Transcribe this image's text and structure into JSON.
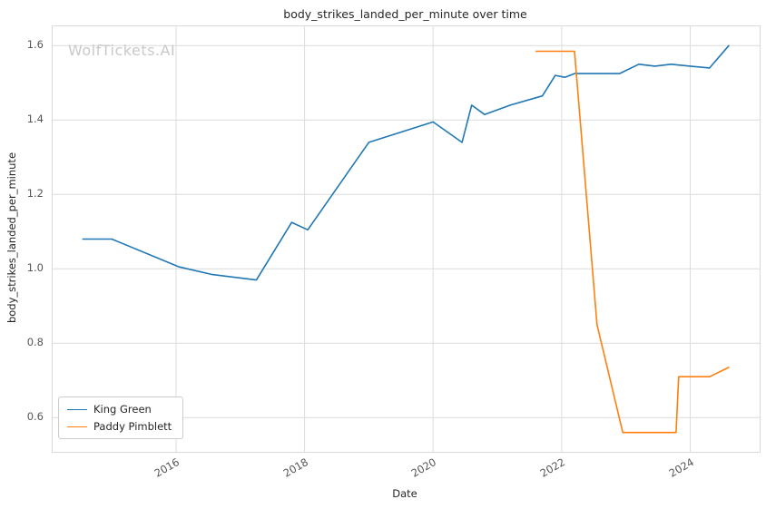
{
  "watermark": "WolfTickets.AI",
  "chart_data": {
    "type": "line",
    "title": "body_strikes_landed_per_minute over time",
    "xlabel": "Date",
    "ylabel": "body_strikes_landed_per_minute",
    "xlim": [
      2014.08,
      2025.08
    ],
    "ylim": [
      0.508,
      1.652
    ],
    "xticks": [
      2016,
      2018,
      2020,
      2022,
      2024
    ],
    "yticks": [
      0.6,
      0.8,
      1.0,
      1.2,
      1.4,
      1.6
    ],
    "grid": true,
    "legend_position": "lower left",
    "series": [
      {
        "name": "King Green",
        "color": "#1f77b4",
        "points": [
          [
            2014.55,
            1.08
          ],
          [
            2015.0,
            1.08
          ],
          [
            2016.05,
            1.005
          ],
          [
            2016.55,
            0.985
          ],
          [
            2017.25,
            0.97
          ],
          [
            2017.8,
            1.125
          ],
          [
            2018.05,
            1.105
          ],
          [
            2019.0,
            1.34
          ],
          [
            2019.45,
            1.365
          ],
          [
            2020.0,
            1.395
          ],
          [
            2020.45,
            1.34
          ],
          [
            2020.6,
            1.44
          ],
          [
            2020.8,
            1.415
          ],
          [
            2021.2,
            1.44
          ],
          [
            2021.7,
            1.465
          ],
          [
            2021.9,
            1.52
          ],
          [
            2022.05,
            1.515
          ],
          [
            2022.2,
            1.525
          ],
          [
            2022.9,
            1.525
          ],
          [
            2023.2,
            1.55
          ],
          [
            2023.45,
            1.545
          ],
          [
            2023.7,
            1.55
          ],
          [
            2024.0,
            1.545
          ],
          [
            2024.3,
            1.54
          ],
          [
            2024.6,
            1.6
          ]
        ]
      },
      {
        "name": "Paddy Pimblett",
        "color": "#ff7f0e",
        "points": [
          [
            2021.6,
            1.585
          ],
          [
            2022.2,
            1.585
          ],
          [
            2022.55,
            0.85
          ],
          [
            2022.95,
            0.56
          ],
          [
            2023.78,
            0.56
          ],
          [
            2023.82,
            0.71
          ],
          [
            2024.3,
            0.71
          ],
          [
            2024.6,
            0.735
          ]
        ]
      }
    ]
  }
}
